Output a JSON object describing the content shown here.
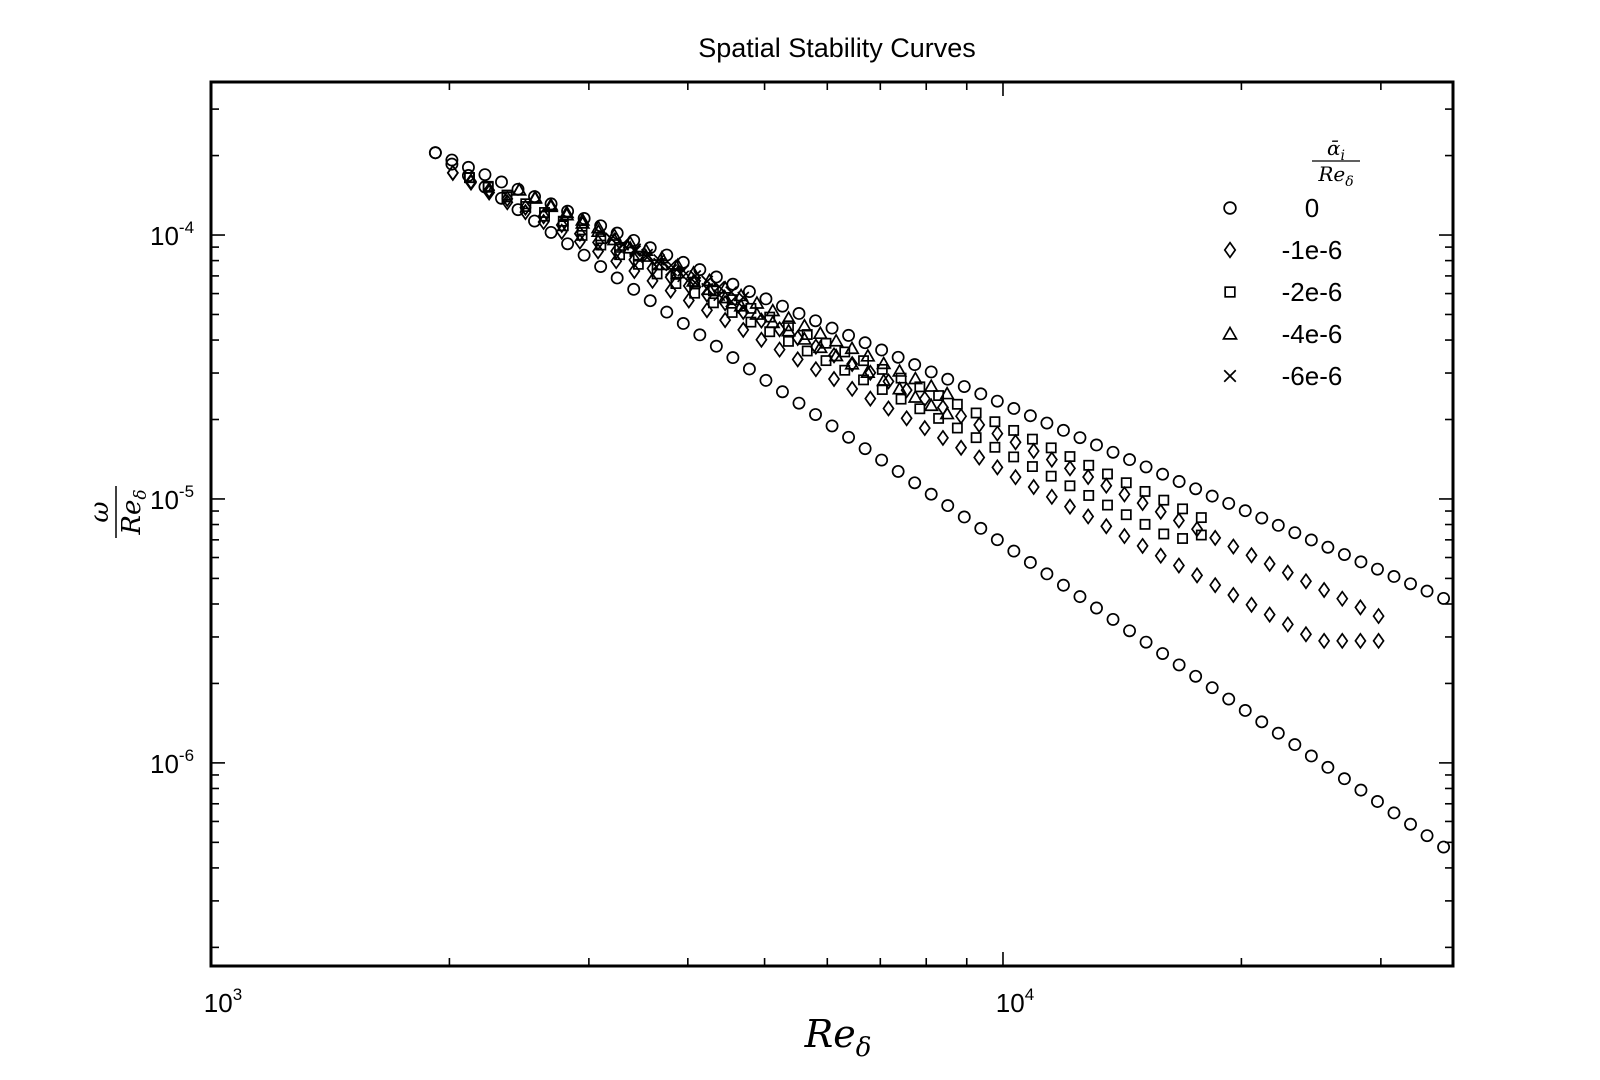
{
  "chart_data": {
    "type": "scatter",
    "title": "Spatial Stability Curves",
    "xlabel": "Re_δ",
    "ylabel": "ω / Re_δ",
    "xscale": "log",
    "yscale": "log",
    "xlim": [
      1000,
      37000
    ],
    "ylim": [
      1.7e-07,
      0.00038
    ],
    "xticks": [
      {
        "value": 1000,
        "base": "10",
        "exp": "3"
      },
      {
        "value": 10000,
        "base": "10",
        "exp": "4"
      }
    ],
    "yticks": [
      {
        "value": 1e-06,
        "base": "10",
        "exp": "-6"
      },
      {
        "value": 1e-05,
        "base": "10",
        "exp": "-5"
      },
      {
        "value": 0.0001,
        "base": "10",
        "exp": "-4"
      }
    ],
    "grid": false,
    "legend": {
      "placement": "top-right",
      "title": "ᾱ_i / Re_δ",
      "entries": [
        {
          "label": "0",
          "marker": "circle"
        },
        {
          "label": "-1e-6",
          "marker": "diamond"
        },
        {
          "label": "-2e-6",
          "marker": "square"
        },
        {
          "label": "-4e-6",
          "marker": "triangle"
        },
        {
          "label": "-6e-6",
          "marker": "cross"
        }
      ]
    },
    "series": [
      {
        "name": "0",
        "marker": "circle",
        "branches": [
          {
            "x": [
              1920,
              36000
            ],
            "y": [
              0.000205,
              4.2e-06
            ],
            "n": 62
          },
          {
            "x": [
              1920,
              36000
            ],
            "y": [
              0.000205,
              4.8e-07
            ],
            "n": 62
          }
        ]
      },
      {
        "name": "-1e-6",
        "marker": "diamond",
        "branches": [
          {
            "x": [
              2020,
              29800
            ],
            "y": [
              0.000172,
              3.6e-06
            ],
            "n": 52
          },
          {
            "x": [
              2020,
              25000,
              29800
            ],
            "y": [
              0.000172,
              2.9e-06,
              2.9e-06
            ],
            "n": 52
          }
        ]
      },
      {
        "name": "-2e-6",
        "marker": "square",
        "branches": [
          {
            "x": [
              2120,
              17800
            ],
            "y": [
              0.000165,
              8.5e-06
            ],
            "n": 40
          },
          {
            "x": [
              2120,
              16500,
              17800
            ],
            "y": [
              0.000165,
              7e-06,
              7.3e-06
            ],
            "n": 40
          }
        ]
      },
      {
        "name": "-4e-6",
        "marker": "triangle",
        "branches": [
          {
            "x": [
              2450,
              8500
            ],
            "y": [
              0.000148,
              2.5e-05
            ],
            "n": 28
          },
          {
            "x": [
              2450,
              8500
            ],
            "y": [
              0.000148,
              2.1e-05
            ],
            "n": 28
          }
        ]
      },
      {
        "name": "-6e-6",
        "marker": "cross",
        "branches": [
          {
            "x": [
              3200,
              4700
            ],
            "y": [
              9.7e-05,
              5.8e-05
            ],
            "n": 12
          },
          {
            "x": [
              3200,
              4700
            ],
            "y": [
              9.7e-05,
              5.3e-05
            ],
            "n": 12
          }
        ]
      }
    ]
  }
}
